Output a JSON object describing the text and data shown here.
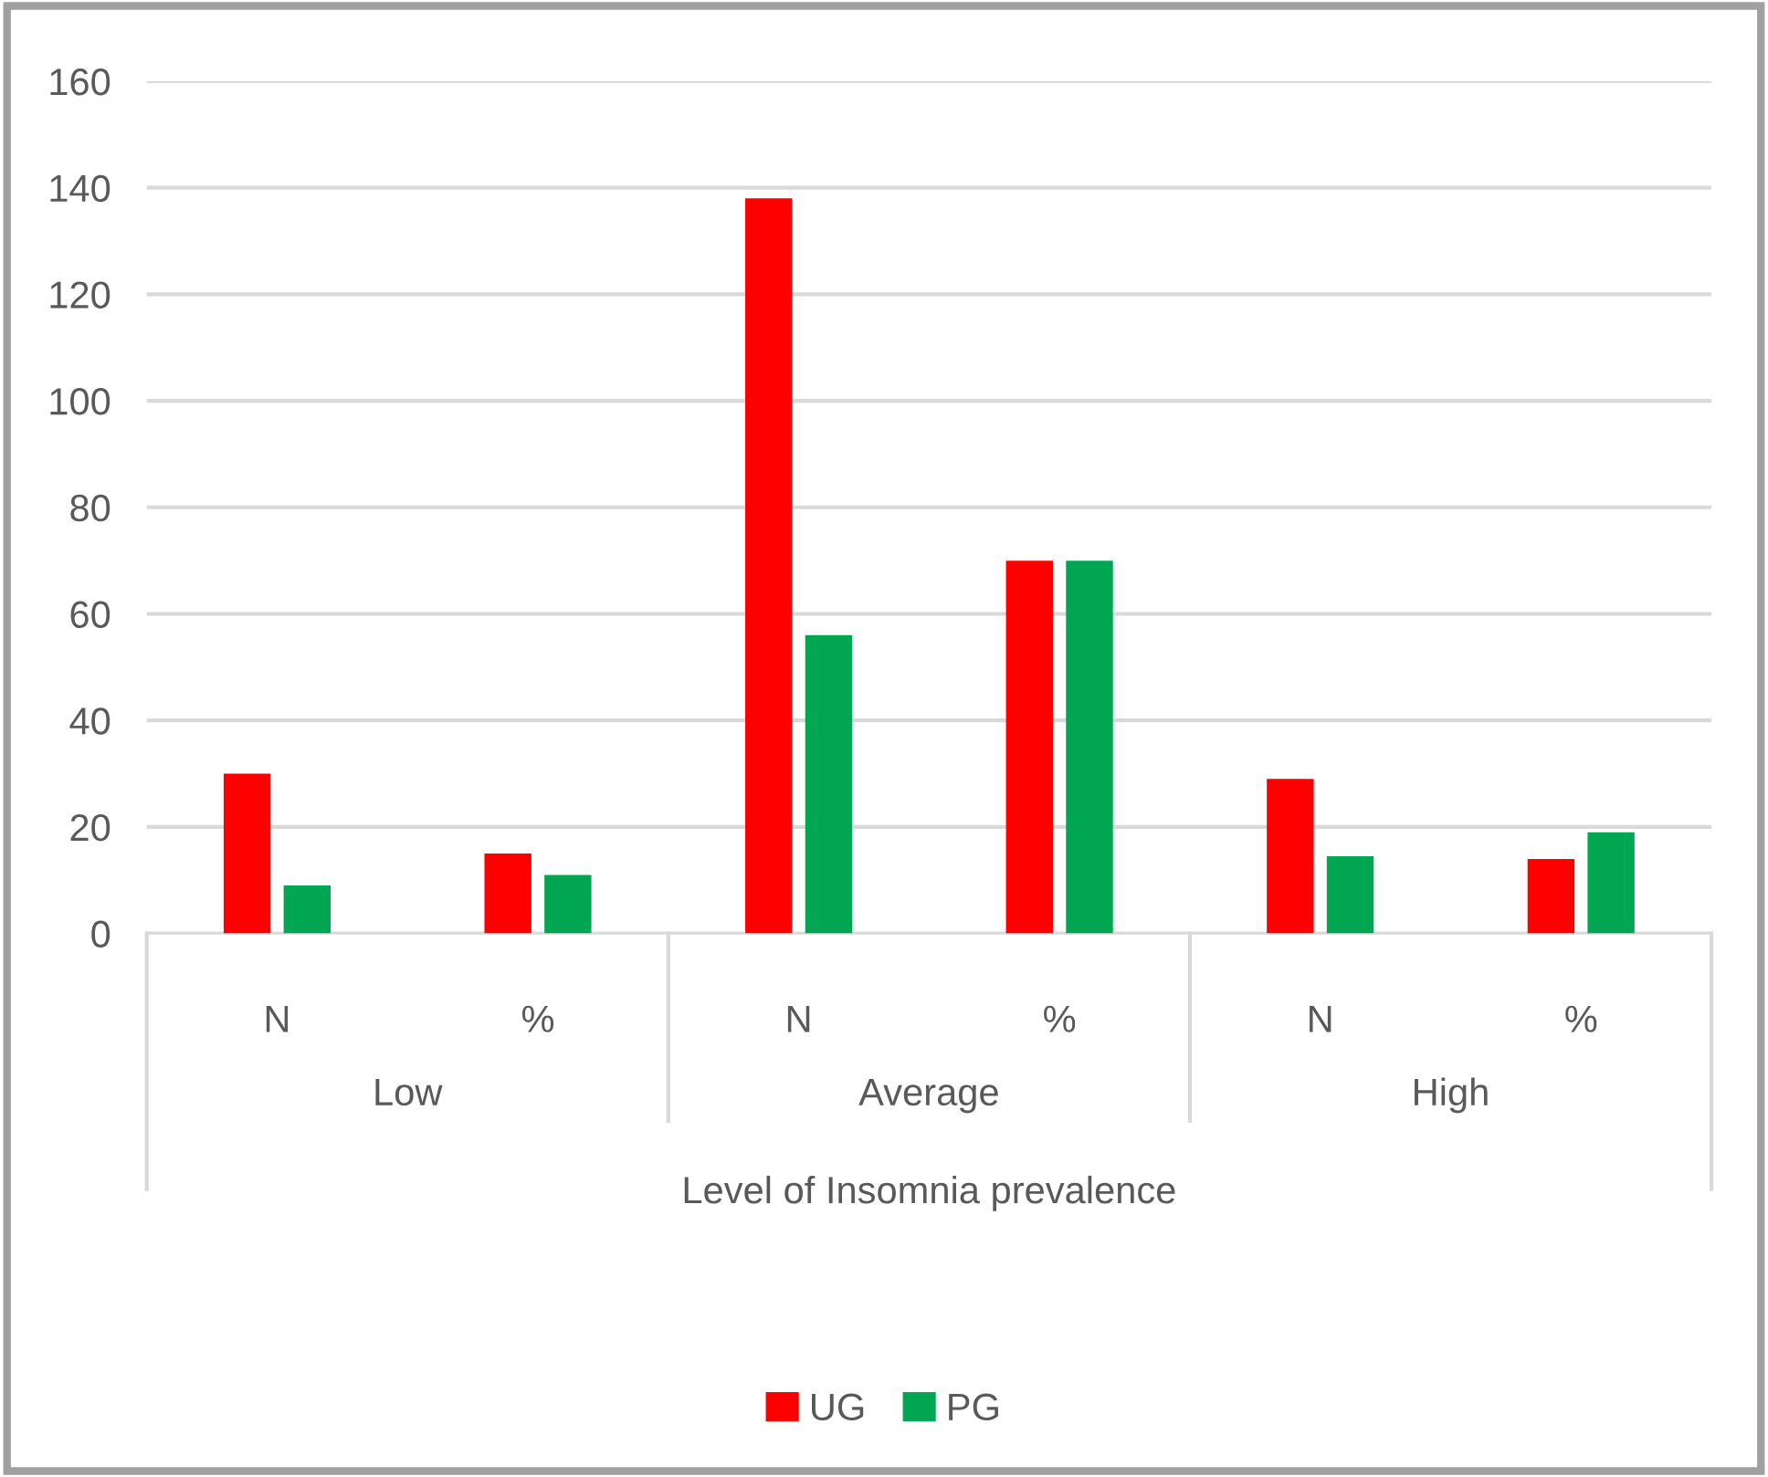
{
  "chart_data": {
    "type": "bar",
    "xlabel": "Level of Insomnia prevalence",
    "categories": [
      "N",
      "%",
      "N",
      "%",
      "N",
      "%"
    ],
    "annotations": [
      "Low",
      "Average",
      "High"
    ],
    "series": [
      {
        "name": "UG",
        "color": "#ff0000",
        "values": [
          30,
          15,
          138,
          70,
          29,
          14
        ]
      },
      {
        "name": "PG",
        "color": "#00a651",
        "values": [
          9,
          11,
          56,
          70,
          14.5,
          19
        ]
      }
    ],
    "ylim": [
      0,
      160
    ],
    "yticks": [
      0,
      20,
      40,
      60,
      80,
      100,
      120,
      140,
      160
    ],
    "grid": "y",
    "legend": "bottom"
  }
}
